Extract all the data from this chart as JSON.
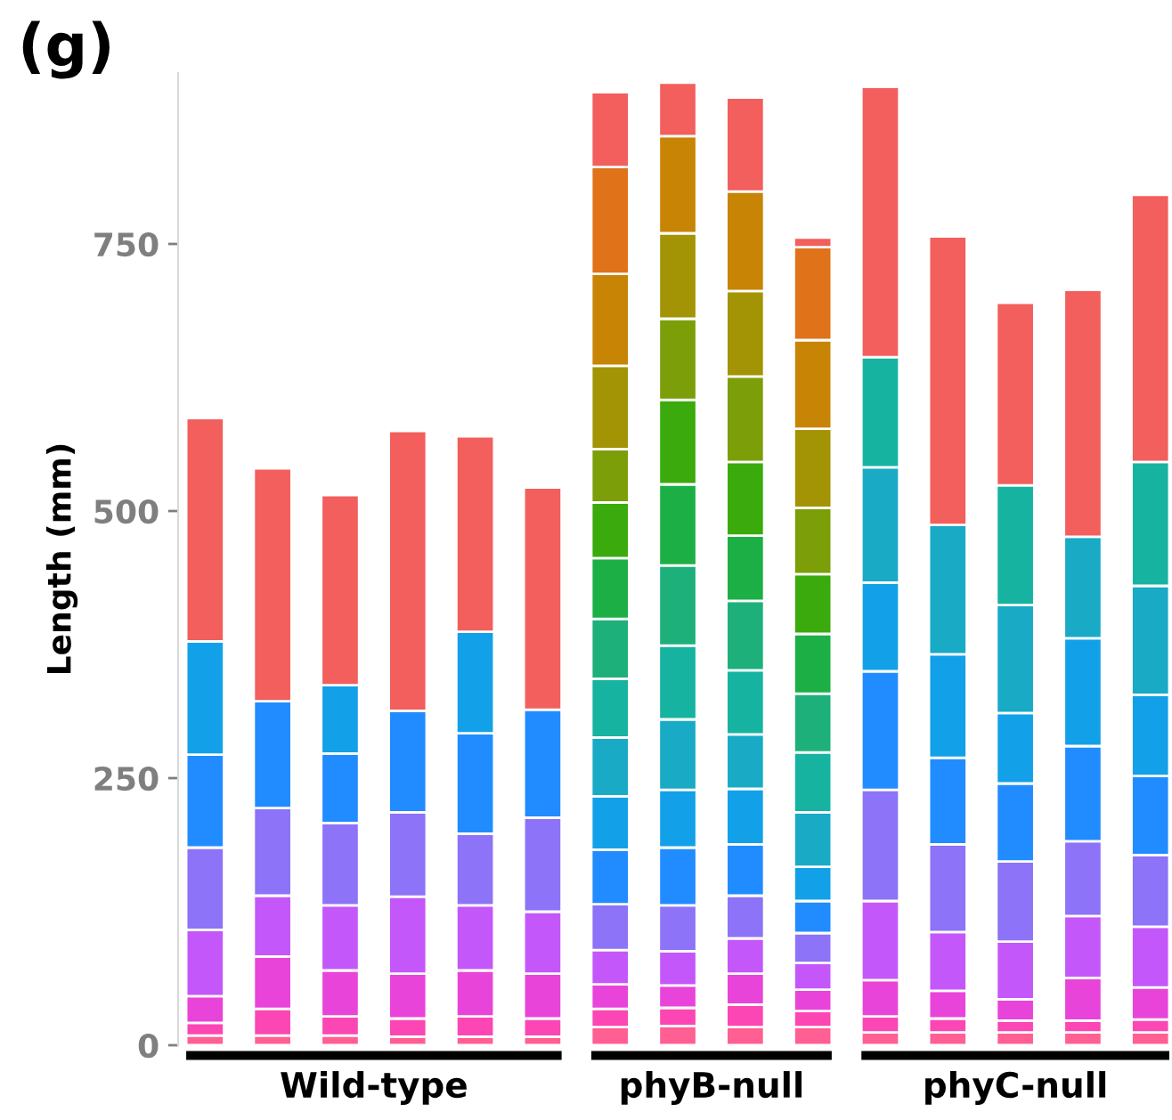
{
  "chart_data": {
    "type": "bar",
    "stacked": true,
    "title": "(g)",
    "ylabel": "Length (mm)",
    "categories": [
      null,
      null,
      null,
      null,
      null,
      null,
      null,
      null,
      null,
      null,
      null,
      null,
      null,
      null,
      null
    ],
    "annotations": [
      "Wild-type",
      "phyB-null",
      "phyC-null"
    ],
    "ylim": [
      0,
      910
    ],
    "yticks": [
      0,
      250,
      500,
      750
    ],
    "grid": false,
    "legend": false,
    "series": [
      {
        "color": "#ff5f93",
        "values": [
          9,
          9,
          9,
          8,
          8,
          8,
          17,
          18,
          17,
          17,
          12,
          12,
          12,
          12,
          12
        ]
      },
      {
        "color": "#fb46b4",
        "values": [
          12,
          25,
          18,
          17,
          19,
          17,
          17,
          17,
          21,
          15,
          15,
          13,
          11,
          11,
          12
        ]
      },
      {
        "color": "#e944d9",
        "values": [
          25,
          49,
          43,
          42,
          43,
          42,
          23,
          21,
          29,
          20,
          34,
          26,
          20,
          40,
          30
        ]
      },
      {
        "color": "#c457fa",
        "values": [
          62,
          57,
          61,
          72,
          61,
          58,
          32,
          32,
          33,
          25,
          74,
          55,
          54,
          58,
          57
        ]
      },
      {
        "color": "#8c73f7",
        "values": [
          77,
          82,
          77,
          79,
          67,
          88,
          43,
          43,
          40,
          28,
          104,
          82,
          75,
          70,
          67
        ]
      },
      {
        "color": "#218cff",
        "values": [
          87,
          100,
          65,
          95,
          94,
          101,
          51,
          54,
          48,
          30,
          111,
          81,
          73,
          89,
          74
        ]
      },
      {
        "color": "#12a1e8",
        "values": [
          106,
          null,
          64,
          null,
          95,
          null,
          50,
          54,
          52,
          32,
          83,
          97,
          66,
          101,
          76
        ]
      },
      {
        "color": "#19aac6",
        "values": [
          null,
          null,
          null,
          null,
          null,
          null,
          55,
          66,
          51,
          51,
          108,
          121,
          101,
          95,
          102
        ]
      },
      {
        "color": "#16b3a0",
        "values": [
          null,
          null,
          null,
          null,
          null,
          null,
          55,
          69,
          60,
          56,
          103,
          null,
          112,
          null,
          116
        ]
      },
      {
        "color": "#1db07a",
        "values": [
          null,
          null,
          null,
          null,
          null,
          null,
          56,
          75,
          65,
          55,
          null,
          null,
          null,
          null,
          null
        ]
      },
      {
        "color": "#1caf45",
        "values": [
          null,
          null,
          null,
          null,
          null,
          null,
          57,
          76,
          61,
          56,
          null,
          null,
          null,
          null,
          null
        ]
      },
      {
        "color": "#3aaa0c",
        "values": [
          null,
          null,
          null,
          null,
          null,
          null,
          52,
          79,
          69,
          56,
          null,
          null,
          null,
          null,
          null
        ]
      },
      {
        "color": "#7c9e08",
        "values": [
          null,
          null,
          null,
          null,
          null,
          null,
          50,
          76,
          80,
          62,
          null,
          null,
          null,
          null,
          null
        ]
      },
      {
        "color": "#a29404",
        "values": [
          null,
          null,
          null,
          null,
          null,
          null,
          78,
          80,
          80,
          74,
          null,
          null,
          null,
          null,
          null
        ]
      },
      {
        "color": "#c88404",
        "values": [
          null,
          null,
          null,
          null,
          null,
          null,
          86,
          91,
          93,
          83,
          null,
          null,
          null,
          null,
          null
        ]
      },
      {
        "color": "#e07219",
        "values": [
          null,
          null,
          null,
          null,
          null,
          null,
          100,
          null,
          null,
          87,
          null,
          null,
          null,
          null,
          null
        ]
      },
      {
        "color": "#f25f5c",
        "values": [
          209,
          218,
          178,
          262,
          183,
          208,
          70,
          50,
          88,
          9,
          253,
          270,
          171,
          231,
          250
        ]
      }
    ]
  }
}
